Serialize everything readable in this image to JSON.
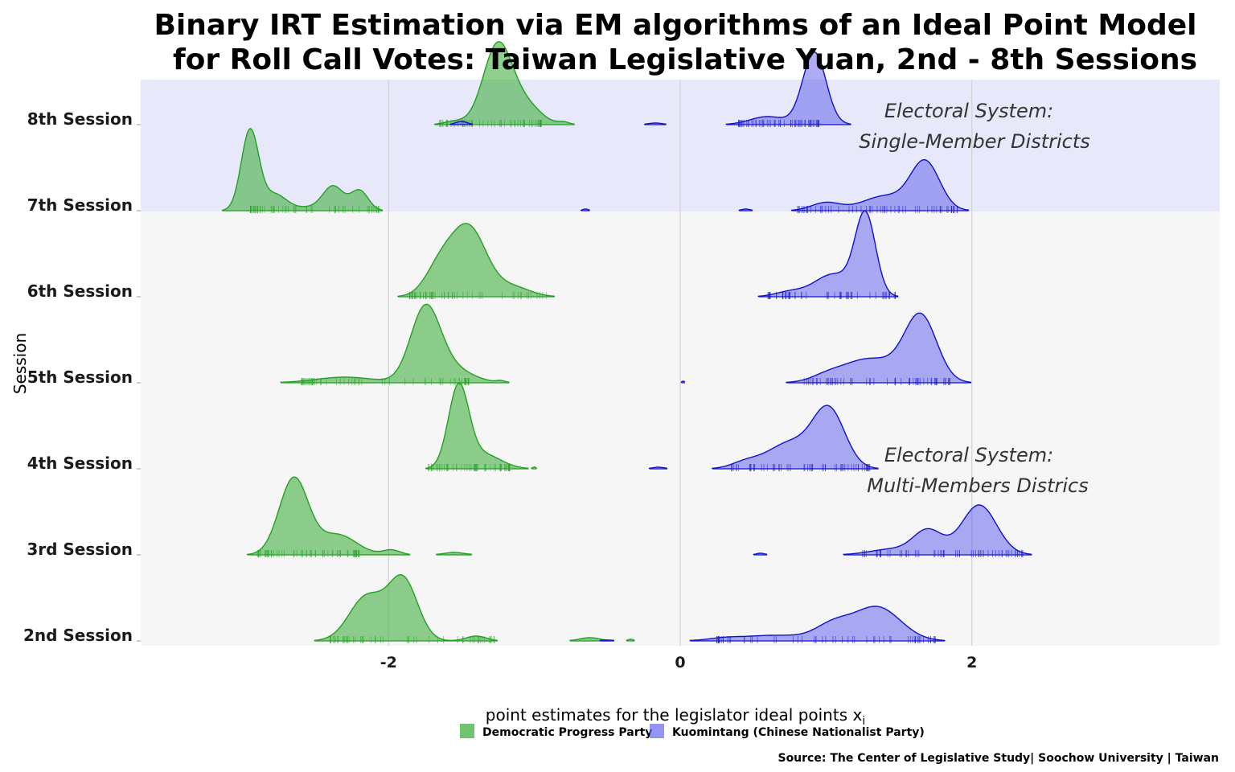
{
  "chart_data": {
    "type": "ridgeline-density",
    "title_lines": [
      "Binary IRT Estimation via EM algorithms  of an Ideal Point Model",
      "for Roll Call Votes: Taiwan Legislative Yuan, 2nd - 8th Sessions"
    ],
    "xlabel": "point estimates for the legislator ideal points x",
    "xlabel_subscript": "i",
    "ylabel": "Session",
    "xlim": [
      -3.7,
      3.7
    ],
    "x_ticks": [
      -2,
      0,
      2
    ],
    "x_tick_labels": [
      "-2",
      "0",
      "2"
    ],
    "categories": [
      "2nd Session",
      "3rd Session",
      "4th Session",
      "5th Session",
      "6th Session",
      "7th Session",
      "8th Session"
    ],
    "grid": "vertical",
    "regions": [
      {
        "sessions": [
          "7th Session",
          "8th Session"
        ],
        "fill": "#e8e8fb",
        "label_lines": [
          "Electoral System:",
          "Single-Member Districts"
        ]
      },
      {
        "sessions": [
          "2nd Session",
          "3rd Session",
          "4th Session",
          "5th Session",
          "6th Session"
        ],
        "fill": "#f6f6f6",
        "label_lines": [
          "Electoral System:",
          "Multi-Members Districs"
        ]
      }
    ],
    "series": [
      {
        "name": "Democratic Progress Party",
        "fill": "#33aa33",
        "line": "#22a022",
        "by_session": {
          "2nd Session": {
            "components": [
              [
                -2.15,
                0.12,
                0.55
              ],
              [
                -1.9,
                0.1,
                0.75
              ],
              [
                -1.4,
                0.07,
                0.06
              ],
              [
                -0.62,
                0.07,
                0.04
              ],
              [
                -0.34,
                0.02,
                0.02
              ]
            ],
            "range": [
              -2.4,
              -1.25
            ]
          },
          "3rd Session": {
            "components": [
              [
                -2.65,
                0.1,
                0.95
              ],
              [
                -2.35,
                0.13,
                0.25
              ],
              [
                -1.98,
                0.06,
                0.06
              ],
              [
                -1.55,
                0.07,
                0.03
              ]
            ],
            "range": [
              -2.9,
              -2.2
            ]
          },
          "4th Session": {
            "components": [
              [
                -1.52,
                0.07,
                1.0
              ],
              [
                -1.35,
                0.12,
                0.18
              ],
              [
                -1.0,
                0.01,
                0.02
              ]
            ],
            "range": [
              -1.75,
              -1.17
            ]
          },
          "5th Session": {
            "components": [
              [
                -1.75,
                0.1,
                0.85
              ],
              [
                -2.3,
                0.2,
                0.07
              ],
              [
                -1.6,
                0.15,
                0.2
              ],
              [
                -1.23,
                0.03,
                0.02
              ]
            ],
            "range": [
              -2.6,
              -1.45
            ]
          },
          "6th Session": {
            "components": [
              [
                -1.45,
                0.12,
                0.85
              ],
              [
                -1.65,
                0.1,
                0.35
              ],
              [
                -1.15,
                0.12,
                0.12
              ]
            ],
            "range": [
              -1.86,
              -0.85
            ]
          },
          "7th Session": {
            "components": [
              [
                -2.95,
                0.06,
                1.0
              ],
              [
                -2.78,
                0.08,
                0.2
              ],
              [
                -2.38,
                0.07,
                0.3
              ],
              [
                -2.2,
                0.06,
                0.25
              ],
              [
                -2.55,
                0.1,
                0.04
              ]
            ],
            "range": [
              -2.95,
              -2.05
            ]
          },
          "8th Session": {
            "components": [
              [
                -1.25,
                0.1,
                1.0
              ],
              [
                -1.05,
                0.1,
                0.22
              ],
              [
                -1.55,
                0.07,
                0.04
              ],
              [
                -0.8,
                0.04,
                0.03
              ]
            ],
            "range": [
              -1.65,
              -0.95
            ]
          }
        }
      },
      {
        "name": "Kuomintang (Chinese Nationalist Party)",
        "fill": "#6666ee",
        "line": "#1111cc",
        "by_session": {
          "2nd Session": {
            "components": [
              [
                1.35,
                0.16,
                0.42
              ],
              [
                1.05,
                0.12,
                0.18
              ],
              [
                0.65,
                0.25,
                0.07
              ],
              [
                0.3,
                0.1,
                0.02
              ],
              [
                -0.5,
                0.05,
                0.01
              ]
            ],
            "range": [
              0.25,
              1.75
            ]
          },
          "3rd Session": {
            "components": [
              [
                2.05,
                0.12,
                0.62
              ],
              [
                1.7,
                0.1,
                0.3
              ],
              [
                1.45,
                0.15,
                0.07
              ],
              [
                0.55,
                0.03,
                0.02
              ]
            ],
            "range": [
              1.25,
              2.35
            ]
          },
          "4th Session": {
            "components": [
              [
                1.02,
                0.11,
                0.72
              ],
              [
                0.75,
                0.15,
                0.32
              ],
              [
                0.45,
                0.1,
                0.08
              ],
              [
                -0.15,
                0.04,
                0.02
              ]
            ],
            "range": [
              0.35,
              1.3
            ]
          },
          "5th Session": {
            "components": [
              [
                1.65,
                0.11,
                0.8
              ],
              [
                1.3,
                0.2,
                0.3
              ],
              [
                1.0,
                0.1,
                0.05
              ],
              [
                0.02,
                0.01,
                0.02
              ]
            ],
            "range": [
              0.85,
              1.85
            ]
          },
          "6th Session": {
            "components": [
              [
                1.27,
                0.07,
                1.0
              ],
              [
                1.05,
                0.13,
                0.28
              ],
              [
                0.75,
                0.1,
                0.06
              ]
            ],
            "range": [
              0.6,
              1.5
            ]
          },
          "7th Session": {
            "components": [
              [
                1.68,
                0.1,
                0.6
              ],
              [
                1.4,
                0.15,
                0.18
              ],
              [
                1.0,
                0.1,
                0.1
              ],
              [
                0.45,
                0.03,
                0.02
              ],
              [
                -0.65,
                0.02,
                0.02
              ]
            ],
            "range": [
              0.8,
              1.9
            ]
          },
          "8th Session": {
            "components": [
              [
                0.92,
                0.08,
                0.9
              ],
              [
                0.6,
                0.12,
                0.1
              ],
              [
                -0.17,
                0.05,
                0.02
              ],
              [
                -1.5,
                0.04,
                0.04
              ]
            ],
            "range": [
              0.4,
              0.95
            ]
          }
        }
      }
    ],
    "source": "Source: The Center of Legislative Study| Soochow University | Taiwan"
  }
}
